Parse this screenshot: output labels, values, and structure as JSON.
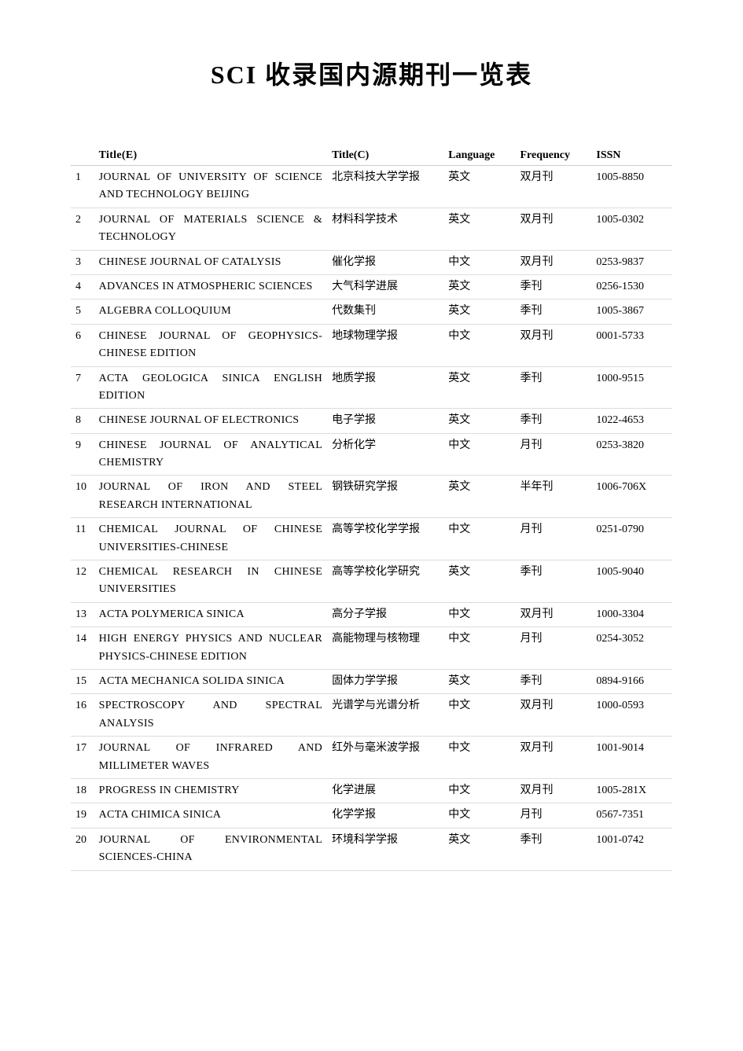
{
  "title_prefix": "SCI",
  "title_rest": " 收录国内源期刊一览表",
  "headers": {
    "num": "",
    "title_e": "Title(E)",
    "title_c": "Title(C)",
    "language": "Language",
    "frequency": "Frequency",
    "issn": "ISSN"
  },
  "rows": [
    {
      "n": "1",
      "e": "JOURNAL OF UNIVERSITY OF SCIENCE AND TECHNOLOGY BEIJING",
      "c": "北京科技大学学报",
      "lang": "英文",
      "freq": "双月刊",
      "issn": "1005-8850"
    },
    {
      "n": "2",
      "e": "JOURNAL OF MATERIALS SCIENCE & TECHNOLOGY",
      "c": "材料科学技术",
      "lang": "英文",
      "freq": "双月刊",
      "issn": "1005-0302"
    },
    {
      "n": "3",
      "e": "CHINESE JOURNAL OF CATALYSIS",
      "c": "催化学报",
      "lang": "中文",
      "freq": "双月刊",
      "issn": "0253-9837"
    },
    {
      "n": "4",
      "e": "ADVANCES IN ATMOSPHERIC SCIENCES",
      "c": "大气科学进展",
      "lang": "英文",
      "freq": "季刊",
      "issn": "0256-1530"
    },
    {
      "n": "5",
      "e": "ALGEBRA COLLOQUIUM",
      "c": "代数集刊",
      "lang": "英文",
      "freq": "季刊",
      "issn": "1005-3867"
    },
    {
      "n": "6",
      "e": "CHINESE JOURNAL OF GEOPHYSICS-CHINESE EDITION",
      "c": "地球物理学报",
      "lang": "中文",
      "freq": "双月刊",
      "issn": "0001-5733"
    },
    {
      "n": "7",
      "e": "ACTA GEOLOGICA SINICA ENGLISH EDITION",
      "c": "地质学报",
      "lang": "英文",
      "freq": "季刊",
      "issn": "1000-9515"
    },
    {
      "n": "8",
      "e": "CHINESE JOURNAL OF ELECTRONICS",
      "c": "电子学报",
      "lang": "英文",
      "freq": "季刊",
      "issn": "1022-4653"
    },
    {
      "n": "9",
      "e": "CHINESE JOURNAL OF ANALYTICAL CHEMISTRY",
      "c": "分析化学",
      "lang": "中文",
      "freq": "月刊",
      "issn": "0253-3820"
    },
    {
      "n": "10",
      "e": "JOURNAL OF IRON AND STEEL RESEARCH INTERNATIONAL",
      "c": "钢铁研究学报",
      "lang": "英文",
      "freq": "半年刊",
      "issn": "1006-706X"
    },
    {
      "n": "11",
      "e": "CHEMICAL JOURNAL OF CHINESE UNIVERSITIES-CHINESE",
      "c": "高等学校化学学报",
      "lang": "中文",
      "freq": "月刊",
      "issn": "0251-0790"
    },
    {
      "n": "12",
      "e": "CHEMICAL RESEARCH IN CHINESE UNIVERSITIES",
      "c": "高等学校化学研究",
      "lang": "英文",
      "freq": "季刊",
      "issn": "1005-9040"
    },
    {
      "n": "13",
      "e": "ACTA POLYMERICA SINICA",
      "c": "高分子学报",
      "lang": "中文",
      "freq": "双月刊",
      "issn": "1000-3304"
    },
    {
      "n": "14",
      "e": "HIGH ENERGY PHYSICS AND NUCLEAR PHYSICS-CHINESE EDITION",
      "c": "高能物理与核物理",
      "lang": "中文",
      "freq": "月刊",
      "issn": "0254-3052"
    },
    {
      "n": "15",
      "e": "ACTA MECHANICA SOLIDA SINICA",
      "c": "固体力学学报",
      "lang": "英文",
      "freq": "季刊",
      "issn": "0894-9166"
    },
    {
      "n": "16",
      "e": "SPECTROSCOPY AND SPECTRAL ANALYSIS",
      "c": "光谱学与光谱分析",
      "lang": "中文",
      "freq": "双月刊",
      "issn": "1000-0593"
    },
    {
      "n": "17",
      "e": "JOURNAL OF INFRARED AND MILLIMETER WAVES",
      "c": "红外与毫米波学报",
      "lang": "中文",
      "freq": "双月刊",
      "issn": "1001-9014"
    },
    {
      "n": "18",
      "e": "PROGRESS IN CHEMISTRY",
      "c": "化学进展",
      "lang": "中文",
      "freq": "双月刊",
      "issn": "1005-281X"
    },
    {
      "n": "19",
      "e": "ACTA CHIMICA SINICA",
      "c": "化学学报",
      "lang": "中文",
      "freq": "月刊",
      "issn": "0567-7351"
    },
    {
      "n": "20",
      "e": "JOURNAL OF ENVIRONMENTAL SCIENCES-CHINA",
      "c": "环境科学学报",
      "lang": "英文",
      "freq": "季刊",
      "issn": "1001-0742"
    }
  ]
}
